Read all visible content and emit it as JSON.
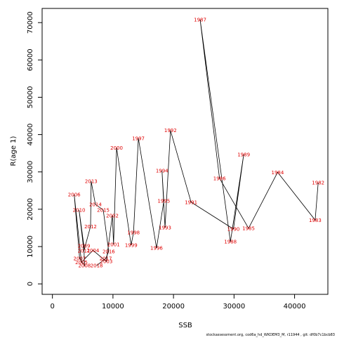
{
  "chart_data": {
    "type": "line",
    "x_label": "SSB",
    "y_label": "R(age 1)",
    "footnote": "stockassessment.org, cod6a_hd_WKDEM3_M, r11944 , git: df0b7c1bcb83",
    "labels": [
      "1982",
      "1983",
      "1984",
      "1985",
      "1986",
      "1987",
      "1988",
      "1989",
      "1990",
      "1991",
      "1992",
      "1993",
      "1994",
      "1995",
      "1996",
      "1997",
      "1998",
      "1999",
      "2000",
      "2001",
      "2002",
      "2003",
      "2004",
      "2005",
      "2006",
      "2007",
      "2008",
      "2009",
      "2010",
      "2011",
      "2012",
      "2013",
      "2014",
      "2015",
      "2016",
      "2017",
      "2018"
    ],
    "x": [
      43900,
      43400,
      37200,
      32400,
      27600,
      24400,
      29400,
      31600,
      29900,
      22900,
      19500,
      18600,
      18100,
      18400,
      17200,
      14200,
      13400,
      13000,
      10600,
      10100,
      9900,
      8900,
      6700,
      4800,
      3600,
      4500,
      5300,
      5200,
      4400,
      5200,
      6300,
      6400,
      7100,
      8400,
      9300,
      8800,
      7300
    ],
    "values": [
      27100,
      17100,
      29900,
      14900,
      28300,
      70800,
      11300,
      34700,
      14700,
      21900,
      41100,
      15100,
      30300,
      22200,
      9600,
      39000,
      13800,
      10400,
      36400,
      10600,
      18300,
      6000,
      9000,
      5800,
      23900,
      6800,
      4900,
      10200,
      19800,
      8900,
      15400,
      27500,
      21300,
      19800,
      8700,
      6800,
      4900
    ],
    "line_color": "#000000",
    "label_color": "#e00000",
    "xlim": [
      -1700,
      45500
    ],
    "ylim": [
      -2800,
      73800
    ],
    "xticks": [
      0,
      10000,
      20000,
      30000,
      40000
    ],
    "yticks": [
      0,
      10000,
      20000,
      30000,
      40000,
      50000,
      60000,
      70000
    ]
  }
}
